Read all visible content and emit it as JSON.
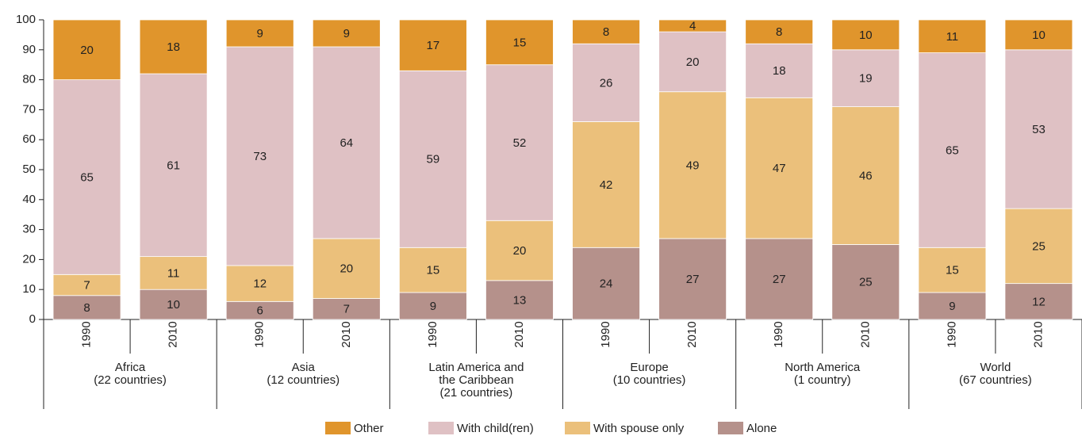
{
  "chart_data": {
    "type": "stacked_bar",
    "categories": [
      "1990",
      "2010",
      "1990",
      "2010",
      "1990",
      "2010",
      "1990",
      "2010",
      "1990",
      "2010",
      "1990",
      "2010"
    ],
    "groups": [
      [
        "Africa",
        "(22 countries)"
      ],
      [
        "Asia",
        "(12 countries)"
      ],
      [
        "Latin America and",
        "the Caribbean",
        "(21 countries)"
      ],
      [
        "Europe",
        "(10 countries)"
      ],
      [
        "North America",
        "(1 country)"
      ],
      [
        "World",
        "(67 countries)"
      ]
    ],
    "series": [
      {
        "name": "Other",
        "color": "#e0952c",
        "values": [
          20,
          18,
          9,
          9,
          17,
          15,
          8,
          4,
          8,
          10,
          11,
          10
        ]
      },
      {
        "name": "With child(ren)",
        "color": "#dfc1c4",
        "values": [
          65,
          61,
          73,
          64,
          59,
          52,
          26,
          20,
          18,
          19,
          65,
          53
        ]
      },
      {
        "name": "With spouse only",
        "color": "#ebc07b",
        "values": [
          7,
          11,
          12,
          20,
          15,
          20,
          42,
          49,
          47,
          46,
          15,
          25
        ]
      },
      {
        "name": "Alone",
        "color": "#b5918b",
        "values": [
          8,
          10,
          6,
          7,
          9,
          13,
          24,
          27,
          27,
          25,
          9,
          12
        ]
      }
    ],
    "ylim": [
      0,
      100
    ],
    "yticks": [
      0,
      10,
      20,
      30,
      40,
      50,
      60,
      70,
      80,
      90,
      100
    ],
    "grid": false
  }
}
